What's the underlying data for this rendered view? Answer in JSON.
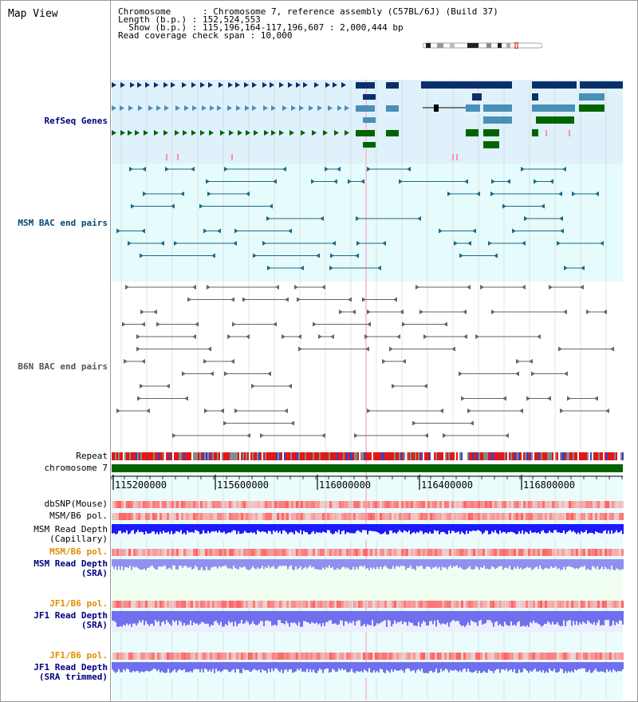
{
  "view_title": "Map View",
  "info": {
    "line1": "Chromosome      : Chromosome 7, reference assembly (C57BL/6J) (Build 37)",
    "line2": "Length (b.p.) : 152,524,553",
    "line3": "  Show (b.p.) : 115,196,164-117,196,607 : 2,000,444 bp",
    "line4": "Read coverage check span : 10,000"
  },
  "tracks": {
    "refseq": "RefSeq Genes",
    "msm_bac": "MSM BAC end pairs",
    "b6n_bac": "B6N BAC end pairs",
    "repeat": "Repeat",
    "chromosome": "chromosome 7",
    "dbsnp": "dbSNP(Mouse)",
    "msm_b6_pol_1": "MSM/B6 pol.",
    "msm_depth_cap_1": "MSM Read Depth",
    "msm_depth_cap_2": "(Capillary)",
    "msm_b6_pol_2": "MSM/B6 pol.",
    "msm_depth_sra_1": "MSM Read Depth",
    "msm_depth_sra_2": "(SRA)",
    "jf1_pol_1": "JF1/B6 pol.",
    "jf1_depth_sra_1": "JF1 Read Depth",
    "jf1_depth_sra_2": "(SRA)",
    "jf1_pol_2": "JF1/B6 pol.",
    "jf1_depth_trim_1": "JF1 Read Depth",
    "jf1_depth_trim_2": "(SRA trimmed)"
  },
  "axis": {
    "ticks": [
      "115200000",
      "115600000",
      "116000000",
      "116400000",
      "116800000"
    ]
  },
  "colors": {
    "refseq_bg": "#dff1fb",
    "bac_bg": "#e6fbfb",
    "gene_dark": "#0b2f6b",
    "gene_mid": "#4a8fb8",
    "gene_green": "#006400",
    "chrom_green": "#006400",
    "label_blue": "#000080",
    "label_teal": "#004a6e",
    "label_orange": "#e08c00",
    "depth_blue": "#1a1aff",
    "depth_light": "#8080f0",
    "snp_red": "#ff6060"
  }
}
